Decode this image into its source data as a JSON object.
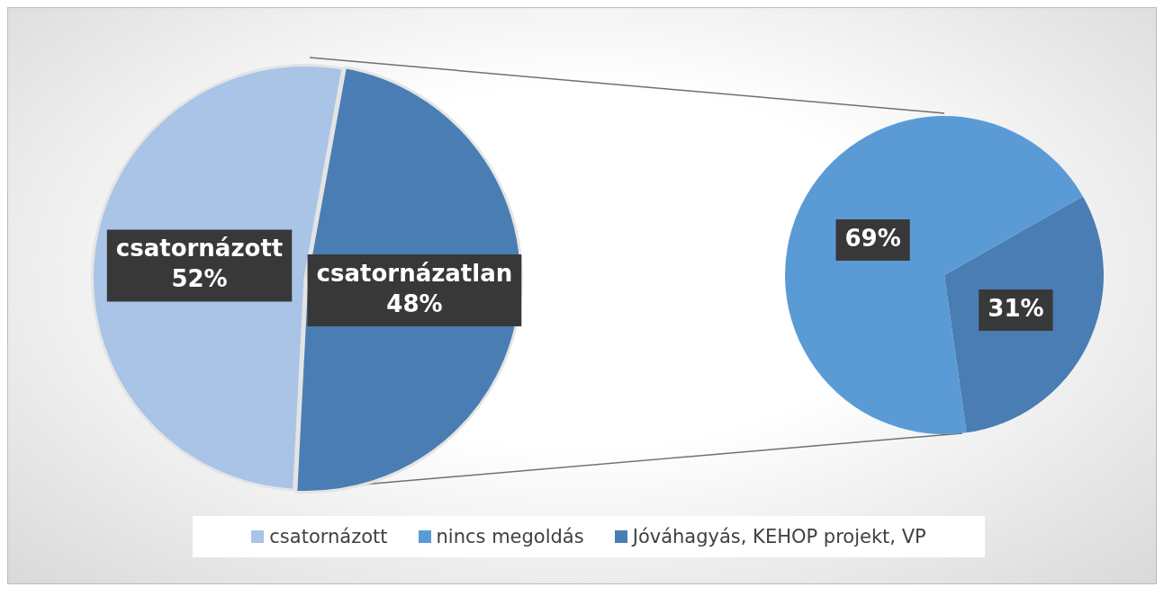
{
  "chart_data": [
    {
      "type": "pie",
      "categories": [
        "csatornázott",
        "csatornázatlan"
      ],
      "values": [
        52,
        48
      ],
      "colors": [
        "#a9c4e6",
        "#4a7db3"
      ],
      "value_labels": [
        "52%",
        "48%"
      ],
      "legend": "bottom"
    },
    {
      "type": "pie",
      "categories": [
        "nincs megoldás",
        "Jóváhagyás, KEHOP projekt, VP"
      ],
      "values": [
        69,
        31
      ],
      "colors": [
        "#5b9bd5",
        "#4a7db3"
      ],
      "value_labels": [
        "69%",
        "31%"
      ],
      "legend": "bottom"
    }
  ]
}
